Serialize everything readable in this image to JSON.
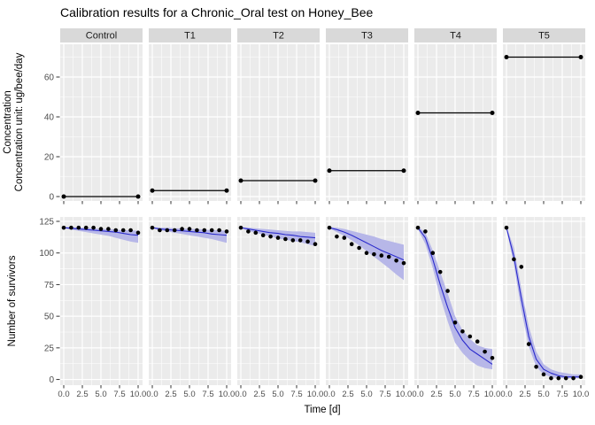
{
  "chart_data": {
    "type": "line",
    "title": "Calibration results for a Chronic_Oral test on Honey_Bee",
    "xlabel": "Time [d]",
    "ylabel_concentration_line1": "Concentration",
    "ylabel_concentration_line2": "Concentration unit: ug/bee/day",
    "ylabel_survivors": "Number of survivors",
    "days": [
      0,
      1,
      2,
      3,
      4,
      5,
      6,
      7,
      8,
      9,
      10
    ],
    "x_tick_labels": [
      "0.0",
      "2.5",
      "5.0",
      "7.5",
      "10.0"
    ],
    "x_tick_values": [
      0,
      2.5,
      5,
      7.5,
      10
    ],
    "x_minor_values": [
      1.25,
      3.75,
      6.25,
      8.75
    ],
    "x_range": [
      0,
      10
    ],
    "concentration_axis": {
      "ticks": [
        0,
        20,
        40,
        60
      ],
      "minor": [
        10,
        30,
        50,
        70
      ],
      "range": [
        0,
        76
      ]
    },
    "survivors_axis": {
      "ticks": [
        0,
        25,
        50,
        75,
        100,
        125
      ],
      "minor": [
        12.5,
        37.5,
        62.5,
        87.5,
        112.5
      ],
      "range": [
        0,
        128
      ]
    },
    "legend": "none",
    "grid": "on",
    "facets": [
      {
        "label": "Control",
        "concentration": 0,
        "observed": [
          120,
          120,
          120,
          120,
          120,
          119,
          119,
          118,
          118,
          118,
          116
        ],
        "fit": [
          120,
          119.5,
          119,
          118.5,
          118,
          117.5,
          117,
          116.5,
          115.5,
          114.5,
          114
        ],
        "band_upper": [
          120.5,
          120.5,
          120,
          120,
          119.5,
          119,
          119,
          118.5,
          118,
          118,
          117.5
        ],
        "band_lower": [
          119.5,
          118.5,
          117.5,
          116.5,
          115.5,
          114.5,
          113.5,
          112,
          110.5,
          109,
          108
        ]
      },
      {
        "label": "T1",
        "concentration": 3,
        "observed": [
          120,
          118,
          118,
          118,
          119,
          119,
          118,
          118,
          118,
          118,
          117
        ],
        "fit": [
          120,
          119,
          118.5,
          118,
          117.5,
          117,
          116.5,
          116,
          115,
          114.5,
          114
        ],
        "band_upper": [
          120.5,
          120,
          120,
          119.5,
          119.5,
          119,
          119,
          118.5,
          118,
          118,
          117.5
        ],
        "band_lower": [
          119.5,
          118,
          117,
          116,
          115,
          114,
          113,
          112,
          111,
          109.5,
          108
        ]
      },
      {
        "label": "T2",
        "concentration": 8,
        "observed": [
          120,
          117,
          116,
          114,
          113,
          112,
          111,
          110,
          110,
          109,
          107
        ],
        "fit": [
          120,
          119,
          118,
          117,
          116,
          115.5,
          114.5,
          114,
          113,
          112.5,
          112
        ],
        "band_upper": [
          120.5,
          120,
          119.5,
          119,
          118.5,
          118,
          117.5,
          117,
          117,
          116.5,
          116
        ],
        "band_lower": [
          119.5,
          117.5,
          116,
          114.5,
          113,
          111.5,
          110.5,
          109.5,
          108.5,
          107,
          105.5
        ]
      },
      {
        "label": "T3",
        "concentration": 13,
        "observed": [
          120,
          113,
          112,
          107,
          104,
          100,
          99,
          98,
          97,
          94,
          92
        ],
        "fit": [
          120,
          118.5,
          116.5,
          114,
          111,
          108,
          105,
          102,
          99.5,
          97,
          94.5
        ],
        "band_upper": [
          120.5,
          120,
          119,
          117.5,
          116,
          114.5,
          113,
          111,
          109.5,
          108,
          106.5
        ],
        "band_lower": [
          119.5,
          116.5,
          113.5,
          110,
          106,
          101.5,
          97,
          92.5,
          88,
          83,
          78.5
        ]
      },
      {
        "label": "T4",
        "concentration": 42,
        "observed": [
          120,
          117,
          100,
          85,
          70,
          45,
          38,
          34,
          30,
          22,
          17
        ],
        "fit": [
          120,
          112,
          95,
          75,
          57,
          41,
          31,
          24,
          20,
          16,
          12
        ],
        "band_upper": [
          121,
          116,
          102,
          85,
          68,
          50,
          39,
          32,
          27,
          25,
          24
        ],
        "band_lower": [
          119,
          107,
          88,
          65,
          46,
          29,
          21,
          15,
          11,
          9,
          8
        ]
      },
      {
        "label": "T5",
        "concentration": 70,
        "observed": [
          120,
          95,
          89,
          28,
          10,
          4,
          1,
          1,
          1,
          1,
          2
        ],
        "fit": [
          120,
          97,
          64,
          34,
          16,
          8,
          5,
          3,
          2,
          2,
          2
        ],
        "band_upper": [
          121,
          104,
          72,
          42,
          22,
          12,
          8,
          6,
          5,
          4,
          4
        ],
        "band_lower": [
          119,
          91,
          55,
          26,
          10,
          4,
          2,
          1,
          1,
          1,
          1
        ]
      }
    ]
  },
  "colors": {
    "fit_line": "#2b2bcc",
    "confidence_band": "#b7b7e8",
    "observed_point": "#000000",
    "dose_line": "#000000",
    "panel_bg": "#ebebeb",
    "strip_bg": "#d9d9d9",
    "strip_text": "#1a1a1a",
    "grid": "#ffffff",
    "tick": "#333333",
    "tick_label": "#4d4d4d",
    "title_text": "#000000"
  }
}
